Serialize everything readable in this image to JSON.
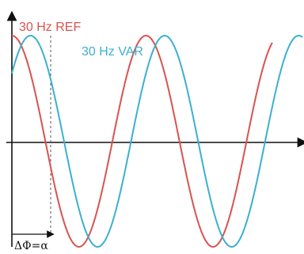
{
  "chart_data": {
    "type": "line",
    "title": "",
    "xlabel": "",
    "ylabel": "",
    "x_range_degrees": [
      0,
      780
    ],
    "y_range": [
      -1,
      1
    ],
    "grid": false,
    "legend_placement": "inline-top",
    "series": [
      {
        "name": "30 Hz REF",
        "function": "cos",
        "amplitude": 1,
        "phase_shift_degrees": 0,
        "x_end_degrees": 700,
        "color": "#d9534f"
      },
      {
        "name": "30 Hz VAR",
        "function": "cos",
        "amplitude": 1,
        "phase_shift_degrees": 50,
        "x_end_degrees": 780,
        "color": "#3bb0cf"
      }
    ],
    "annotation": {
      "label": "ΔΦ=α",
      "marks_phase_difference_degrees": 50
    }
  }
}
